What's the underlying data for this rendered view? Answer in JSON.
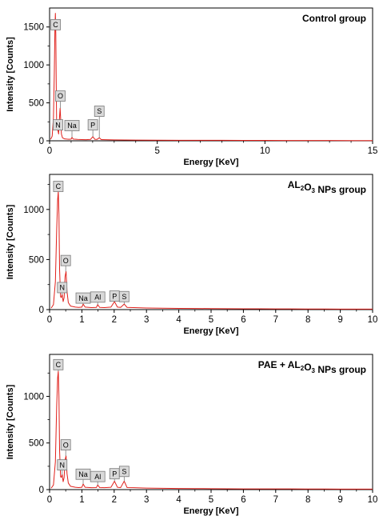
{
  "chart_data": [
    {
      "type": "line",
      "title": "Control group",
      "title_parts": [
        {
          "text": "Control group"
        }
      ],
      "xlabel": "Energy [KeV]",
      "ylabel": "Intensity [Counts]",
      "xlim": [
        0,
        15
      ],
      "ylim": [
        0,
        1750
      ],
      "xticks": [
        0,
        5,
        10,
        15
      ],
      "yticks": [
        0,
        500,
        1000,
        1500
      ],
      "line_color": "#e0201b",
      "series": [
        {
          "x": [
            0.05,
            0.12,
            0.18,
            0.22,
            0.25,
            0.27,
            0.29,
            0.31,
            0.33,
            0.35,
            0.38,
            0.42,
            0.45,
            0.49,
            0.52,
            0.55,
            0.6,
            0.7,
            0.8,
            0.9,
            1.0,
            1.04,
            1.1,
            1.3,
            1.5,
            1.7,
            1.9,
            2.01,
            2.1,
            2.2,
            2.31,
            2.4,
            2.6,
            3.0,
            3.5,
            4.0,
            5.0,
            6.0,
            7.0,
            8.0,
            9.0,
            10.0,
            11.0,
            12.0,
            13.0,
            14.0,
            15.0
          ],
          "y": [
            20,
            60,
            300,
            900,
            1500,
            1680,
            1400,
            700,
            180,
            140,
            150,
            90,
            260,
            430,
            260,
            90,
            40,
            25,
            22,
            20,
            22,
            45,
            22,
            18,
            16,
            15,
            18,
            55,
            20,
            18,
            40,
            16,
            14,
            12,
            10,
            9,
            8,
            7,
            6,
            6,
            5,
            5,
            4,
            4,
            4,
            3,
            3
          ]
        }
      ],
      "peaks": [
        {
          "element": "C",
          "x": 0.28,
          "y": 1680,
          "label_y": 1530
        },
        {
          "element": "O",
          "x": 0.5,
          "y": 430,
          "label_y": 590
        },
        {
          "element": "N",
          "x": 0.39,
          "y": 150,
          "label_y": 210
        },
        {
          "element": "Na",
          "x": 1.04,
          "y": 45,
          "label_y": 200
        },
        {
          "element": "P",
          "x": 2.01,
          "y": 55,
          "label_y": 210
        },
        {
          "element": "S",
          "x": 2.31,
          "y": 40,
          "label_y": 390
        }
      ]
    },
    {
      "type": "line",
      "title": "AL2O3 NPs group",
      "title_parts": [
        {
          "text": "AL"
        },
        {
          "text": "2",
          "sub": true
        },
        {
          "text": "O"
        },
        {
          "text": "3",
          "sub": true
        },
        {
          "text": " NPs group"
        }
      ],
      "xlabel": "Energy [KeV]",
      "ylabel": "Intensity [Counts]",
      "xlim": [
        0,
        10
      ],
      "ylim": [
        0,
        1350
      ],
      "xticks": [
        0,
        1,
        2,
        3,
        4,
        5,
        6,
        7,
        8,
        9,
        10
      ],
      "yticks": [
        0,
        500,
        1000
      ],
      "line_color": "#e0201b",
      "series": [
        {
          "x": [
            0.05,
            0.12,
            0.18,
            0.22,
            0.25,
            0.27,
            0.29,
            0.31,
            0.34,
            0.36,
            0.39,
            0.42,
            0.45,
            0.48,
            0.51,
            0.54,
            0.58,
            0.65,
            0.8,
            0.9,
            1.0,
            1.04,
            1.1,
            1.3,
            1.45,
            1.49,
            1.55,
            1.7,
            1.9,
            2.01,
            2.1,
            2.2,
            2.31,
            2.4,
            2.6,
            2.8,
            3.0,
            3.5,
            4.0,
            4.5,
            5.0,
            5.5,
            6.0,
            6.5,
            7.0,
            7.5,
            8.0,
            8.5,
            9.0,
            9.5,
            10.0
          ],
          "y": [
            15,
            50,
            280,
            800,
            1100,
            1180,
            950,
            400,
            130,
            120,
            150,
            80,
            120,
            330,
            380,
            180,
            70,
            35,
            25,
            22,
            25,
            55,
            25,
            20,
            22,
            50,
            22,
            20,
            25,
            80,
            25,
            22,
            55,
            22,
            20,
            18,
            16,
            14,
            12,
            11,
            10,
            9,
            8,
            8,
            7,
            7,
            6,
            6,
            5,
            5,
            5
          ]
        }
      ],
      "peaks": [
        {
          "element": "C",
          "x": 0.27,
          "y": 1180,
          "label_y": 1230
        },
        {
          "element": "O",
          "x": 0.5,
          "y": 380,
          "label_y": 490
        },
        {
          "element": "N",
          "x": 0.39,
          "y": 150,
          "label_y": 220
        },
        {
          "element": "Na",
          "x": 1.04,
          "y": 55,
          "label_y": 115
        },
        {
          "element": "Al",
          "x": 1.49,
          "y": 50,
          "label_y": 125
        },
        {
          "element": "P",
          "x": 2.01,
          "y": 80,
          "label_y": 135
        },
        {
          "element": "S",
          "x": 2.31,
          "y": 55,
          "label_y": 130
        }
      ]
    },
    {
      "type": "line",
      "title": "PAE + AL2O3 NPs group",
      "title_parts": [
        {
          "text": "PAE + AL"
        },
        {
          "text": "2",
          "sub": true
        },
        {
          "text": "O"
        },
        {
          "text": "3",
          "sub": true
        },
        {
          "text": " NPs group"
        }
      ],
      "xlabel": "Energy [KeV]",
      "ylabel": "Intensity [Counts]",
      "xlim": [
        0,
        10
      ],
      "ylim": [
        0,
        1450
      ],
      "xticks": [
        0,
        1,
        2,
        3,
        4,
        5,
        6,
        7,
        8,
        9,
        10
      ],
      "yticks": [
        0,
        500,
        1000
      ],
      "line_color": "#e0201b",
      "series": [
        {
          "x": [
            0.05,
            0.12,
            0.18,
            0.22,
            0.25,
            0.27,
            0.29,
            0.31,
            0.34,
            0.36,
            0.39,
            0.42,
            0.45,
            0.48,
            0.51,
            0.54,
            0.58,
            0.65,
            0.8,
            0.9,
            1.0,
            1.04,
            1.1,
            1.3,
            1.45,
            1.49,
            1.55,
            1.7,
            1.9,
            2.01,
            2.1,
            2.2,
            2.31,
            2.4,
            2.6,
            2.8,
            3.0,
            3.5,
            4.0,
            4.5,
            5.0,
            5.5,
            6.0,
            6.5,
            7.0,
            7.5,
            8.0,
            8.5,
            9.0,
            9.5,
            10.0
          ],
          "y": [
            15,
            50,
            300,
            900,
            1200,
            1270,
            1000,
            420,
            140,
            130,
            160,
            85,
            130,
            320,
            360,
            170,
            70,
            35,
            25,
            22,
            25,
            60,
            25,
            20,
            22,
            50,
            22,
            20,
            25,
            90,
            25,
            22,
            90,
            22,
            20,
            18,
            16,
            14,
            12,
            11,
            10,
            9,
            8,
            8,
            7,
            7,
            6,
            6,
            5,
            5,
            5
          ]
        }
      ],
      "peaks": [
        {
          "element": "C",
          "x": 0.27,
          "y": 1270,
          "label_y": 1340
        },
        {
          "element": "O",
          "x": 0.5,
          "y": 360,
          "label_y": 480
        },
        {
          "element": "N",
          "x": 0.39,
          "y": 160,
          "label_y": 265
        },
        {
          "element": "Na",
          "x": 1.04,
          "y": 60,
          "label_y": 165
        },
        {
          "element": "Al",
          "x": 1.49,
          "y": 50,
          "label_y": 140
        },
        {
          "element": "P",
          "x": 2.01,
          "y": 90,
          "label_y": 170
        },
        {
          "element": "S",
          "x": 2.31,
          "y": 90,
          "label_y": 195
        }
      ]
    }
  ]
}
